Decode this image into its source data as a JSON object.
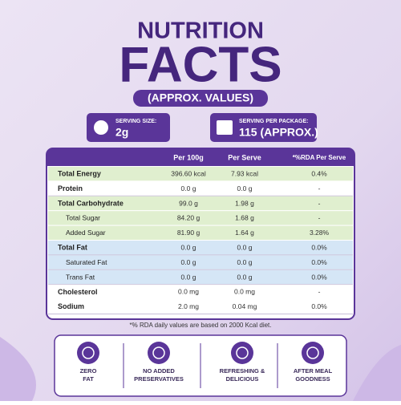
{
  "header": {
    "title": "NUTRITION",
    "headline": "FACTS",
    "subtitle": "(APPROX. VALUES)"
  },
  "serving": [
    {
      "label": "SERVING SIZE:",
      "value": "2g"
    },
    {
      "label": "SERVING PER PACKAGE:",
      "value": "115 (APPROX.)"
    }
  ],
  "table": {
    "columns": [
      "Per 100g",
      "Per Serve",
      "*%RDA Per Serve"
    ],
    "sections": [
      {
        "rows": [
          [
            "Total Energy",
            "396.60 kcal",
            "7.93 kcal",
            "0.4%"
          ]
        ]
      },
      {
        "rows": [
          [
            "Protein",
            "0.0 g",
            "0.0 g",
            "-"
          ]
        ]
      },
      {
        "rows": [
          [
            "Total Carbohydrate",
            "99.0 g",
            "1.98 g",
            "-"
          ],
          [
            "Total Sugar",
            "84.20 g",
            "1.68 g",
            "-"
          ],
          [
            "Added Sugar",
            "81.90 g",
            "1.64 g",
            "3.28%"
          ]
        ]
      },
      {
        "rows": [
          [
            "Total Fat",
            "0.0 g",
            "0.0 g",
            "0.0%"
          ],
          [
            "Saturated Fat",
            "0.0 g",
            "0.0 g",
            "0.0%"
          ],
          [
            "Trans Fat",
            "0.0 g",
            "0.0 g",
            "0.0%"
          ]
        ]
      },
      {
        "rows": [
          [
            "Cholesterol",
            "0.0 mg",
            "0.0 mg",
            "-"
          ]
        ]
      },
      {
        "rows": [
          [
            "Sodium",
            "2.0 mg",
            "0.04 mg",
            "0.0%"
          ]
        ]
      }
    ]
  },
  "footnote": "*% RDA daily values are based on 2000 Kcal diet.",
  "badges": [
    [
      "ZERO",
      "FAT"
    ],
    [
      "NO ADDED",
      "PRESERVATIVES"
    ],
    [
      "REFRESHING &",
      "DELICIOUS"
    ],
    [
      "AFTER MEAL",
      "GOODNESS"
    ]
  ]
}
